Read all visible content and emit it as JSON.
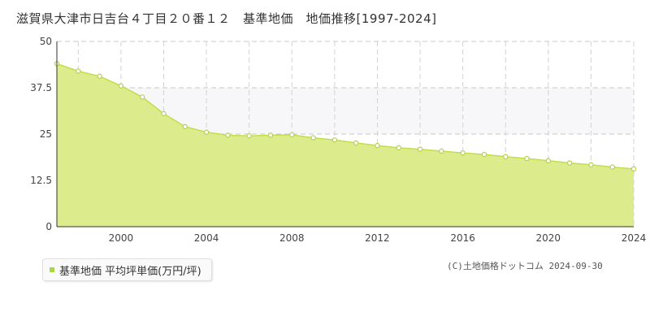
{
  "title": "滋賀県大津市日吉台４丁目２０番１２　基準地価　地価推移[1997-2024]",
  "legend": {
    "label": "基準地価 平均坪単価(万円/坪)"
  },
  "copyright": "(C)土地価格ドットコム 2024-09-30",
  "colors": {
    "fill": "#dcec8c",
    "line": "#c2de4c",
    "band": "#f7f7f9",
    "point_stroke": "#b4d050"
  },
  "chart_data": {
    "type": "area",
    "xlim": [
      1997,
      2024
    ],
    "ylim": [
      0,
      50
    ],
    "y_ticks": [
      0,
      12.5,
      25,
      37.5,
      50
    ],
    "y_tick_labels": [
      "0",
      "12.5",
      "25",
      "37.5",
      "50"
    ],
    "x_ticks": [
      2000,
      2004,
      2008,
      2012,
      2016,
      2020,
      2024
    ],
    "x_tick_labels": [
      "2000",
      "2004",
      "2008",
      "2012",
      "2016",
      "2020",
      "2024"
    ],
    "series": [
      {
        "x": [
          1997,
          1998,
          1999,
          2000,
          2001,
          2002,
          2003,
          2004,
          2005,
          2006,
          2007,
          2008,
          2009,
          2010,
          2011,
          2012,
          2013,
          2014,
          2015,
          2016,
          2017,
          2018,
          2019,
          2020,
          2021,
          2022,
          2023,
          2024
        ],
        "values": [
          44.0,
          42.0,
          40.6,
          38.0,
          35.0,
          30.5,
          27.0,
          25.5,
          24.7,
          24.5,
          24.7,
          24.8,
          24.0,
          23.4,
          22.6,
          21.9,
          21.3,
          20.9,
          20.4,
          19.9,
          19.5,
          18.9,
          18.4,
          17.8,
          17.2,
          16.7,
          16.1,
          15.6
        ]
      }
    ]
  }
}
